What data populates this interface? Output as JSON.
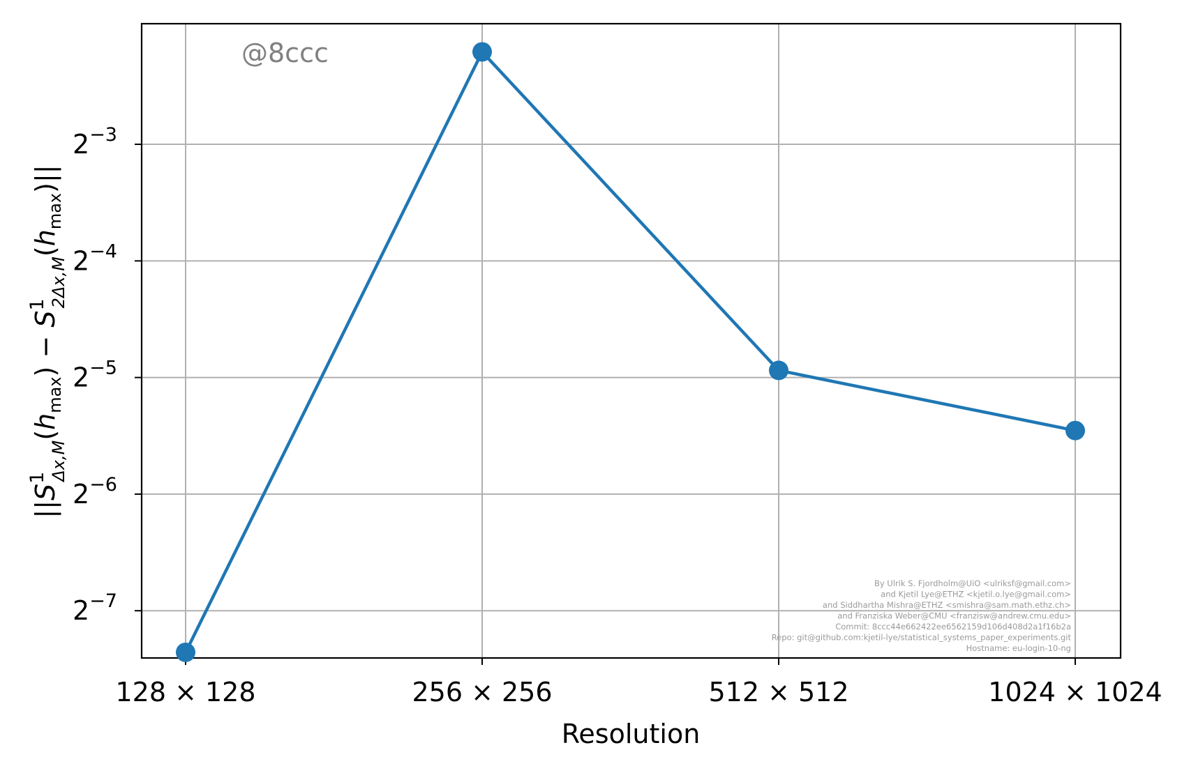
{
  "chart_data": {
    "type": "line",
    "title": "",
    "xlabel": "Resolution",
    "ylabel": "||S^1_{Δx,M}(h_max) − S^1_{2Δx,M}(h_max)||",
    "ylabel_parts": {
      "open": "||",
      "S": "S",
      "sup": "1",
      "sub1": "Δx,M",
      "mid1": "(",
      "h": "h",
      "hsub": "max",
      "mid2": ") − ",
      "sub2": "2Δx,M",
      "close": ")||"
    },
    "categories": [
      "128 × 128",
      "256 × 256",
      "512 × 512",
      "1024 × 1024"
    ],
    "y_scale": "log2",
    "ylim": [
      0.0059,
      0.256
    ],
    "y_ticks": [
      {
        "base": "2",
        "exp": "−7",
        "value": 0.0078125
      },
      {
        "base": "2",
        "exp": "−6",
        "value": 0.015625
      },
      {
        "base": "2",
        "exp": "−5",
        "value": 0.03125
      },
      {
        "base": "2",
        "exp": "−4",
        "value": 0.0625
      },
      {
        "base": "2",
        "exp": "−3",
        "value": 0.125
      }
    ],
    "series": [
      {
        "values": [
          0.0061,
          0.2165,
          0.0326,
          0.0228
        ],
        "color": "#1f77b4",
        "marker": "circle"
      }
    ],
    "grid": true,
    "legend": "none"
  },
  "annotations": {
    "watermark": "@8ccc",
    "credits": [
      "By Ulrik S. Fjordholm@UiO <ulriksf@gmail.com>",
      "and Kjetil Lye@ETHZ <kjetil.o.lye@gmail.com>",
      "and Siddhartha Mishra@ETHZ <smishra@sam.math.ethz.ch>",
      "and Franziska Weber@CMU <franzisw@andrew.cmu.edu>",
      "Commit: 8ccc44e662422ee6562159d106d408d2a1f16b2a",
      "Repo: git@github.com:kjetil-lye/statistical_systems_paper_experiments.git",
      "Hostname: eu-login-10-ng"
    ]
  }
}
